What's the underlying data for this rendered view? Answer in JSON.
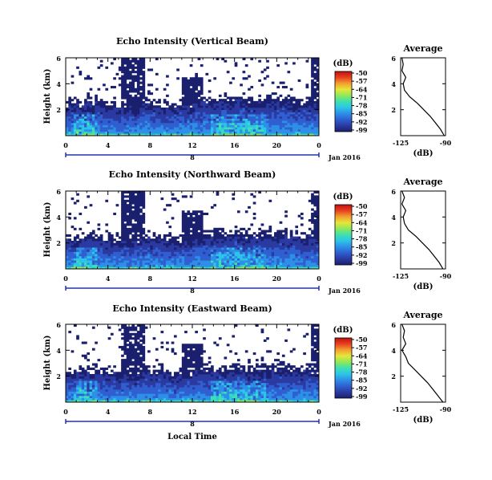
{
  "colors": {
    "cmap": [
      "#1a1f6e",
      "#2b3aa0",
      "#2f5fd0",
      "#2e8fe6",
      "#2cc4e8",
      "#3ee0b0",
      "#8fe85a",
      "#e6e63a",
      "#f2a030",
      "#e84020",
      "#c01010"
    ],
    "background": "#ffffff",
    "profile": "#000000",
    "axis": "#000000",
    "date_bar": "#2233aa"
  },
  "figure": {
    "xlabel": "Local Time",
    "date_label": "Jan 2016",
    "date_bar_label": "8"
  },
  "chart_data": [
    {
      "type": "heatmap",
      "title": "Echo Intensity (Vertical Beam)",
      "ylabel": "Height (km)",
      "xlim": [
        0,
        24
      ],
      "ylim": [
        0,
        6
      ],
      "xticks": [
        "0",
        "4",
        "8",
        "12",
        "16",
        "20",
        "0"
      ],
      "yticks": [
        "2",
        "4",
        "6"
      ],
      "colorbar": {
        "label": "(dB)",
        "min": -99,
        "max": -50,
        "ticks": [
          "-50",
          "-57",
          "-64",
          "-71",
          "-78",
          "-85",
          "-92",
          "-99"
        ]
      },
      "echo_top_km": [
        2.4,
        2.4,
        2.5,
        2.3,
        2.3,
        2.2,
        2.2,
        2.5,
        2.4,
        2.3,
        2.2,
        2.3,
        2.6,
        2.6,
        2.7,
        2.7,
        2.8,
        2.6,
        2.5,
        2.7,
        2.7,
        2.6,
        2.5,
        2.6
      ],
      "average": {
        "title": "Average",
        "xlabel": "(dB)",
        "xticks": [
          "-125",
          "-90"
        ],
        "yticks": [
          "2",
          "4",
          "6"
        ],
        "xlim": [
          -125,
          -90
        ],
        "height_km": [
          0,
          0.5,
          1,
          1.5,
          2,
          2.5,
          3,
          3.5,
          4,
          4.5,
          5,
          5.5,
          6
        ],
        "db": [
          -91,
          -94,
          -98,
          -102,
          -107,
          -112,
          -118,
          -122,
          -123,
          -121,
          -124,
          -123,
          -124
        ]
      }
    },
    {
      "type": "heatmap",
      "title": "Echo Intensity (Northward Beam)",
      "ylabel": "Height (km)",
      "xlim": [
        0,
        24
      ],
      "ylim": [
        0,
        6
      ],
      "xticks": [
        "0",
        "4",
        "8",
        "12",
        "16",
        "20",
        "0"
      ],
      "yticks": [
        "2",
        "4",
        "6"
      ],
      "colorbar": {
        "label": "(dB)",
        "min": -99,
        "max": -50,
        "ticks": [
          "-50",
          "-57",
          "-64",
          "-71",
          "-78",
          "-85",
          "-92",
          "-99"
        ]
      },
      "echo_top_km": [
        2.3,
        2.3,
        2.4,
        2.2,
        2.2,
        2.1,
        2.1,
        2.4,
        2.3,
        2.2,
        2.1,
        2.2,
        2.5,
        2.5,
        2.6,
        2.6,
        2.7,
        2.5,
        2.4,
        2.6,
        2.6,
        2.5,
        2.4,
        2.5
      ],
      "average": {
        "title": "Average",
        "xlabel": "(dB)",
        "xticks": [
          "-125",
          "-90"
        ],
        "yticks": [
          "2",
          "4",
          "6"
        ],
        "xlim": [
          -125,
          -90
        ],
        "height_km": [
          0,
          0.5,
          1,
          1.5,
          2,
          2.5,
          3,
          3.5,
          4,
          4.5,
          5,
          5.5,
          6
        ],
        "db": [
          -92,
          -95,
          -99,
          -103,
          -108,
          -113,
          -119,
          -122,
          -123,
          -121,
          -124,
          -122,
          -124
        ]
      }
    },
    {
      "type": "heatmap",
      "title": "Echo Intensity (Eastward Beam)",
      "ylabel": "Height (km)",
      "xlim": [
        0,
        24
      ],
      "ylim": [
        0,
        6
      ],
      "xticks": [
        "0",
        "4",
        "8",
        "12",
        "16",
        "20",
        "0"
      ],
      "yticks": [
        "2",
        "4",
        "6"
      ],
      "colorbar": {
        "label": "(dB)",
        "min": -99,
        "max": -50,
        "ticks": [
          "-50",
          "-57",
          "-64",
          "-71",
          "-78",
          "-85",
          "-92",
          "-99"
        ]
      },
      "echo_top_km": [
        2.2,
        2.3,
        2.3,
        2.2,
        2.1,
        2.1,
        2.0,
        2.3,
        2.3,
        2.2,
        2.1,
        2.2,
        2.4,
        2.5,
        2.5,
        2.6,
        2.6,
        2.5,
        2.4,
        2.5,
        2.6,
        2.5,
        2.4,
        2.4
      ],
      "average": {
        "title": "Average",
        "xlabel": "(dB)",
        "xticks": [
          "-125",
          "-90"
        ],
        "yticks": [
          "2",
          "4",
          "6"
        ],
        "xlim": [
          -125,
          -90
        ],
        "height_km": [
          0,
          0.5,
          1,
          1.5,
          2,
          2.5,
          3,
          3.5,
          4,
          4.5,
          5,
          5.5,
          6
        ],
        "db": [
          -92,
          -96,
          -100,
          -104,
          -109,
          -114,
          -119,
          -121,
          -124,
          -121,
          -123,
          -122,
          -124
        ]
      }
    }
  ]
}
